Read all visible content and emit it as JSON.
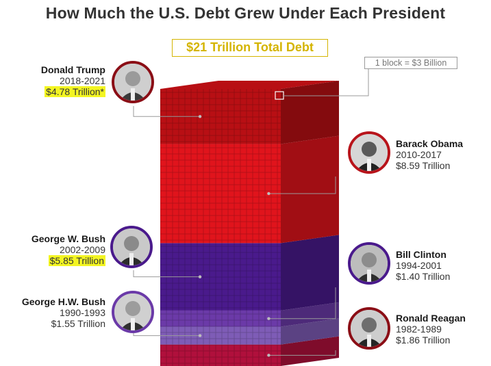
{
  "title": "How Much the U.S. Debt Grew Under Each President",
  "total_label": "$21 Trillion Total Debt",
  "block_note": "1 block = $3 Billion",
  "presidents": [
    {
      "name": "Donald Trump",
      "years": "2018-2021",
      "amount": "$4.78 Trillion*",
      "highlight": true
    },
    {
      "name": "Barack Obama",
      "years": "2010-2017",
      "amount": "$8.59 Trillion",
      "highlight": false
    },
    {
      "name": "George W. Bush",
      "years": "2002-2009",
      "amount": "$5.85 Trillion",
      "highlight": true
    },
    {
      "name": "Bill Clinton",
      "years": "1994-2001",
      "amount": "$1.40 Trillion",
      "highlight": false
    },
    {
      "name": "George H.W. Bush",
      "years": "1990-1993",
      "amount": "$1.55 Trillion",
      "highlight": false
    },
    {
      "name": "Ronald Reagan",
      "years": "1982-1989",
      "amount": "$1.86 Trillion",
      "highlight": false
    }
  ],
  "chart_data": {
    "type": "bar",
    "title": "How Much the U.S. Debt Grew Under Each President",
    "subtitle": "$21 Trillion Total Debt",
    "unit_note": "1 block = $3 Billion",
    "categories": [
      "Ronald Reagan",
      "George H.W. Bush",
      "Bill Clinton",
      "George W. Bush",
      "Barack Obama",
      "Donald Trump"
    ],
    "values": [
      1.86,
      1.55,
      1.4,
      5.85,
      8.59,
      4.78
    ],
    "value_unit": "Trillion USD",
    "stacked": true,
    "segment_colors": [
      "#b0103c",
      "#7e5cb6",
      "#6b3aa8",
      "#4a1a8c",
      "#e0141c",
      "#b80f14"
    ]
  }
}
